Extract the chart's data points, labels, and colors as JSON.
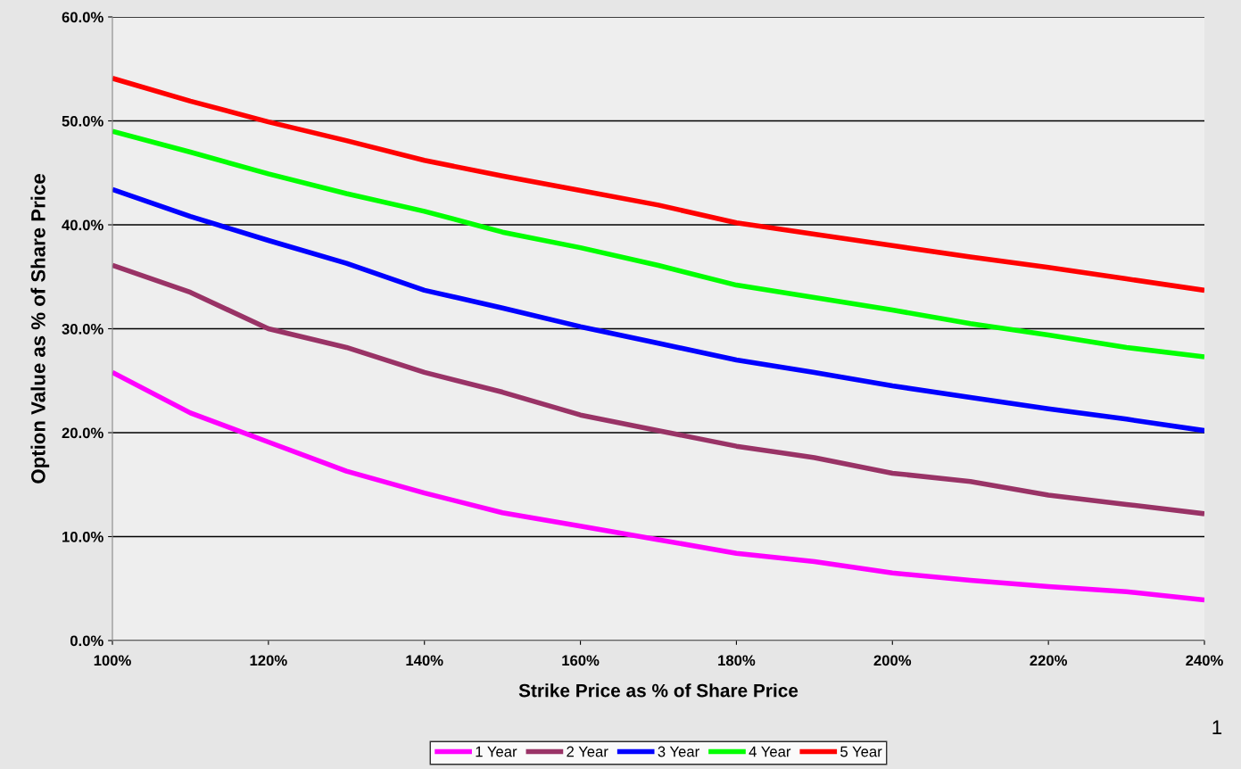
{
  "chart_data": {
    "type": "line",
    "xlabel": "Strike Price as % of Share Price",
    "ylabel": "Option Value as % of Share Price",
    "x": [
      100,
      110,
      120,
      130,
      140,
      150,
      160,
      170,
      180,
      190,
      200,
      210,
      220,
      230,
      240
    ],
    "series": [
      {
        "name": "1 Year",
        "color": "#ff00ff",
        "values": [
          25.8,
          21.9,
          19.1,
          16.3,
          14.2,
          12.3,
          11.0,
          9.7,
          8.4,
          7.6,
          6.5,
          5.8,
          5.2,
          4.7,
          3.9
        ]
      },
      {
        "name": "2 Year",
        "color": "#993366",
        "values": [
          36.1,
          33.5,
          30.0,
          28.2,
          25.8,
          23.9,
          21.7,
          20.2,
          18.7,
          17.6,
          16.1,
          15.3,
          14.0,
          13.1,
          12.2
        ]
      },
      {
        "name": "3 Year",
        "color": "#0000ff",
        "values": [
          43.4,
          40.8,
          38.5,
          36.3,
          33.7,
          32.0,
          30.2,
          28.6,
          27.0,
          25.8,
          24.5,
          23.4,
          22.3,
          21.3,
          20.2
        ]
      },
      {
        "name": "4 Year",
        "color": "#00ff00",
        "values": [
          49.0,
          47.0,
          44.9,
          43.0,
          41.3,
          39.3,
          37.8,
          36.1,
          34.2,
          33.0,
          31.8,
          30.5,
          29.4,
          28.2,
          27.3
        ]
      },
      {
        "name": "5 Year",
        "color": "#ff0000",
        "values": [
          54.1,
          51.9,
          49.9,
          48.1,
          46.2,
          44.7,
          43.3,
          41.9,
          40.2,
          39.1,
          38.0,
          36.9,
          35.9,
          34.8,
          33.7
        ]
      }
    ],
    "xlim": [
      100,
      240
    ],
    "xticks": [
      {
        "value": 100,
        "label": "100%"
      },
      {
        "value": 120,
        "label": "120%"
      },
      {
        "value": 140,
        "label": "140%"
      },
      {
        "value": 160,
        "label": "160%"
      },
      {
        "value": 180,
        "label": "180%"
      },
      {
        "value": 200,
        "label": "200%"
      },
      {
        "value": 220,
        "label": "220%"
      },
      {
        "value": 240,
        "label": "240%"
      }
    ],
    "ylim": [
      0,
      60
    ],
    "yticks": [
      {
        "value": 0,
        "label": "0.0%"
      },
      {
        "value": 10,
        "label": "10.0%"
      },
      {
        "value": 20,
        "label": "20.0%"
      },
      {
        "value": 30,
        "label": "30.0%"
      },
      {
        "value": 40,
        "label": "40.0%"
      },
      {
        "value": 50,
        "label": "50.0%"
      },
      {
        "value": 60,
        "label": "60.0%"
      }
    ],
    "grid": "y",
    "legend": "bottom",
    "marker": "none",
    "line_style": "solid",
    "annotations": [
      "1"
    ]
  }
}
